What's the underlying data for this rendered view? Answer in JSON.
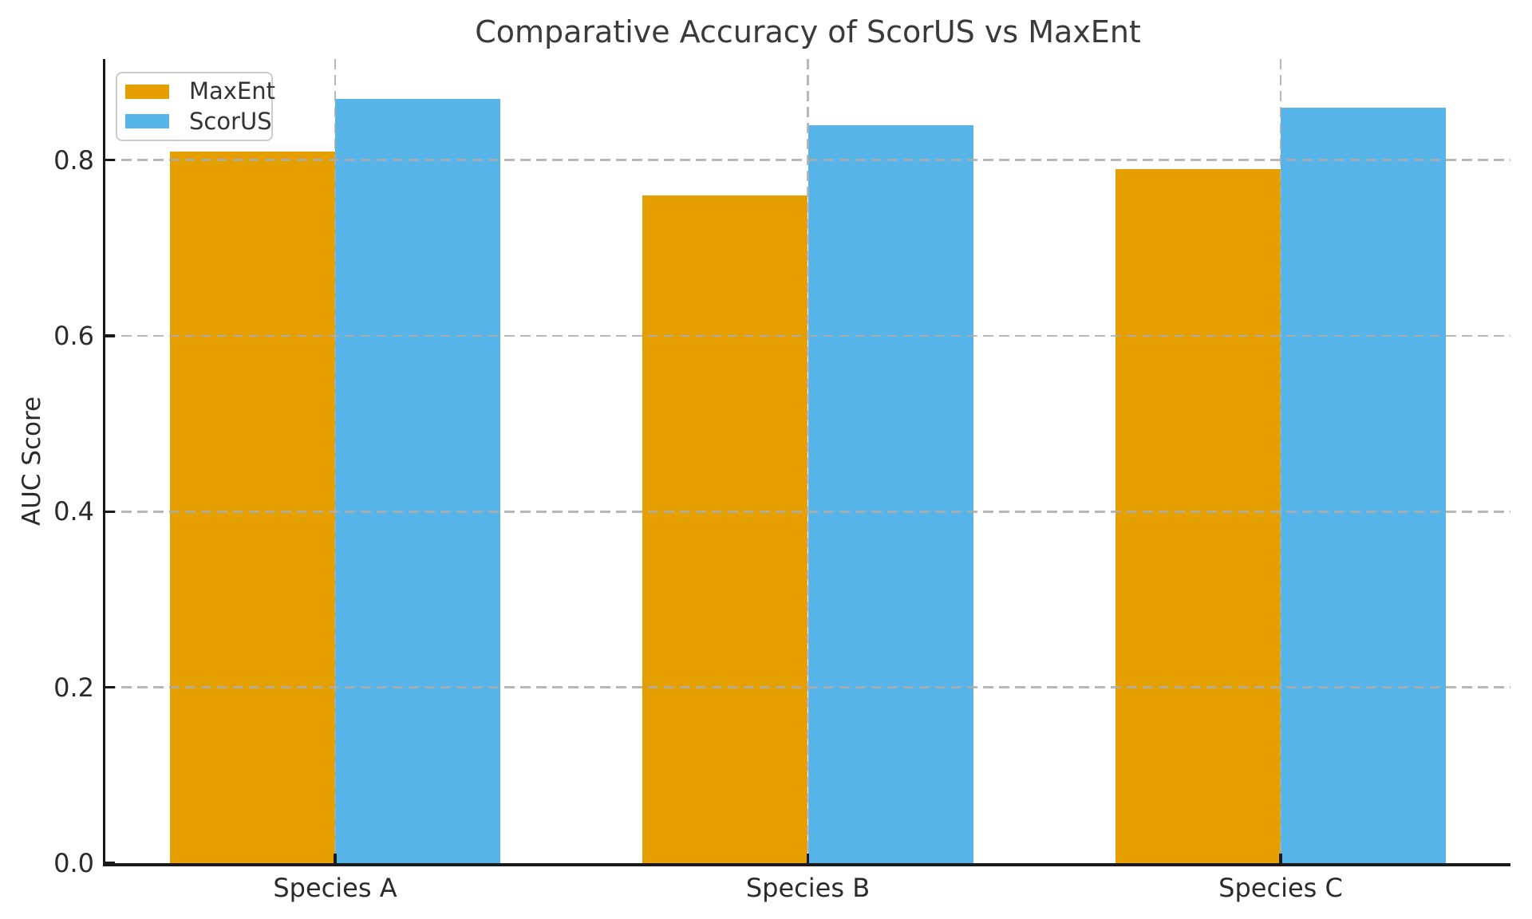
{
  "chart_data": {
    "type": "bar",
    "title": "Comparative Accuracy of ScorUS vs MaxEnt",
    "categories": [
      "Species A",
      "Species B",
      "Species C"
    ],
    "series": [
      {
        "name": "MaxEnt",
        "color": "#E69F00",
        "values": [
          0.81,
          0.76,
          0.79
        ]
      },
      {
        "name": "ScorUS",
        "color": "#56B4E9",
        "values": [
          0.87,
          0.84,
          0.86
        ]
      }
    ],
    "xlabel": "",
    "ylabel": "AUC Score",
    "ylim": [
      0,
      0.915
    ],
    "yticks": [
      0.0,
      0.2,
      0.4,
      0.6,
      0.8
    ],
    "ytick_labels": [
      "0.0",
      "0.2",
      "0.4",
      "0.6",
      "0.8"
    ],
    "bar_width": 0.35,
    "grid": "both axes, dashed light gray, drawn above bars",
    "legend_position": "upper left",
    "background_color": "#ffffff",
    "spine_color": "#1a1a1a",
    "text_color": "#2b2b2b",
    "gridline_color": "#acacac"
  }
}
